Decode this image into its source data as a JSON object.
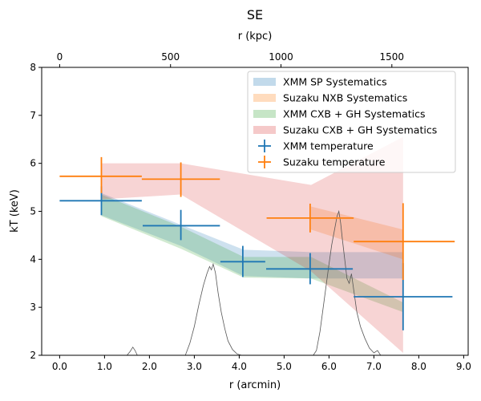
{
  "chart_data": {
    "type": "line",
    "title": "SE",
    "xlabel": "r (arcmin)",
    "ylabel": "kT (keV)",
    "top_xlabel": "r (kpc)",
    "xlim": [
      -0.4,
      9.1
    ],
    "ylim": [
      2,
      8
    ],
    "top_xlim": [
      -0.4,
      9.1
    ],
    "xticks": [
      0.0,
      1.0,
      2.0,
      3.0,
      4.0,
      5.0,
      6.0,
      7.0,
      8.0,
      9.0
    ],
    "xtick_labels": [
      "0.0",
      "1.0",
      "2.0",
      "3.0",
      "4.0",
      "5.0",
      "6.0",
      "7.0",
      "8.0",
      "9.0"
    ],
    "yticks": [
      2,
      3,
      4,
      5,
      6,
      7,
      8
    ],
    "ytick_labels": [
      "2",
      "3",
      "4",
      "5",
      "6",
      "7",
      "8"
    ],
    "top_xticks": [
      0.0,
      2.47,
      4.93,
      7.4
    ],
    "top_xtick_labels": [
      "0",
      "500",
      "1000",
      "1500"
    ],
    "grid": false,
    "legend_position": "top-right",
    "bands": [
      {
        "name": "XMM SP Systematics",
        "color": "#1f77b4",
        "opacity": 0.22,
        "points": [
          {
            "x": 0.93,
            "lo": 4.92,
            "hi": 5.38
          },
          {
            "x": 2.7,
            "lo": 4.28,
            "hi": 4.72
          },
          {
            "x": 4.1,
            "lo": 3.65,
            "hi": 4.2
          },
          {
            "x": 5.6,
            "lo": 3.6,
            "hi": 4.15
          },
          {
            "x": 7.65,
            "lo": 3.6,
            "hi": 4.15
          }
        ]
      },
      {
        "name": "Suzaku NXB Systematics",
        "color": "#ff7f0e",
        "opacity": 0.22,
        "points": [
          {
            "x": 5.6,
            "lo": 4.62,
            "hi": 5.1
          },
          {
            "x": 7.65,
            "lo": 4.0,
            "hi": 4.62
          }
        ]
      },
      {
        "name": "XMM CXB + GH Systematics",
        "color": "#2ca02c",
        "opacity": 0.22,
        "points": [
          {
            "x": 0.93,
            "lo": 4.9,
            "hi": 5.35
          },
          {
            "x": 2.7,
            "lo": 4.22,
            "hi": 4.68
          },
          {
            "x": 4.1,
            "lo": 3.62,
            "hi": 4.05
          },
          {
            "x": 5.6,
            "lo": 3.6,
            "hi": 4.05
          },
          {
            "x": 7.65,
            "lo": 2.9,
            "hi": 3.1
          }
        ]
      },
      {
        "name": "Suzaku CXB + GH Systematics",
        "color": "#d62728",
        "opacity": 0.2,
        "points": [
          {
            "x": 0.93,
            "lo": 5.25,
            "hi": 6.0
          },
          {
            "x": 2.7,
            "lo": 5.35,
            "hi": 6.0
          },
          {
            "x": 5.6,
            "lo": 3.75,
            "hi": 5.55
          },
          {
            "x": 7.65,
            "lo": 2.05,
            "hi": 6.55
          }
        ]
      }
    ],
    "series": [
      {
        "name": "XMM temperature",
        "color": "#1f77b4",
        "points": [
          {
            "x": 0.93,
            "y": 5.22,
            "xerr": [
              0.93,
              0.9
            ],
            "yerr": [
              0.3,
              0.3
            ]
          },
          {
            "x": 2.7,
            "y": 4.7,
            "xerr": [
              0.85,
              0.87
            ],
            "yerr": [
              0.3,
              0.33
            ]
          },
          {
            "x": 4.08,
            "y": 3.95,
            "xerr": [
              0.5,
              0.5
            ],
            "yerr": [
              0.32,
              0.33
            ]
          },
          {
            "x": 5.58,
            "y": 3.8,
            "xerr": [
              0.98,
              0.95
            ],
            "yerr": [
              0.32,
              0.33
            ]
          },
          {
            "x": 7.65,
            "y": 3.22,
            "xerr": [
              1.1,
              1.1
            ],
            "yerr": [
              0.7,
              0.7
            ]
          }
        ]
      },
      {
        "name": "Suzaku temperature",
        "color": "#ff7f0e",
        "points": [
          {
            "x": 0.93,
            "y": 5.73,
            "xerr": [
              0.93,
              0.9
            ],
            "yerr": [
              0.35,
              0.4
            ]
          },
          {
            "x": 2.7,
            "y": 5.67,
            "xerr": [
              0.87,
              0.87
            ],
            "yerr": [
              0.37,
              0.35
            ]
          },
          {
            "x": 5.58,
            "y": 4.86,
            "xerr": [
              0.97,
              0.97
            ],
            "yerr": [
              0.3,
              0.3
            ]
          },
          {
            "x": 7.65,
            "y": 4.37,
            "xerr": [
              1.1,
              1.15
            ],
            "yerr": [
              0.8,
              0.8
            ]
          }
        ]
      }
    ],
    "profile_line": {
      "color": "#555555",
      "points": [
        [
          1.5,
          2.0
        ],
        [
          1.57,
          2.08
        ],
        [
          1.63,
          2.17
        ],
        [
          1.68,
          2.1
        ],
        [
          1.73,
          2.0
        ],
        [
          2.8,
          2.0
        ],
        [
          2.9,
          2.25
        ],
        [
          3.0,
          2.6
        ],
        [
          3.1,
          3.05
        ],
        [
          3.2,
          3.45
        ],
        [
          3.28,
          3.7
        ],
        [
          3.34,
          3.85
        ],
        [
          3.38,
          3.78
        ],
        [
          3.42,
          3.9
        ],
        [
          3.47,
          3.72
        ],
        [
          3.53,
          3.3
        ],
        [
          3.6,
          2.9
        ],
        [
          3.68,
          2.55
        ],
        [
          3.75,
          2.3
        ],
        [
          3.85,
          2.12
        ],
        [
          3.95,
          2.03
        ],
        [
          4.05,
          2.0
        ],
        [
          5.65,
          2.0
        ],
        [
          5.72,
          2.1
        ],
        [
          5.8,
          2.5
        ],
        [
          5.9,
          3.2
        ],
        [
          6.0,
          3.9
        ],
        [
          6.06,
          4.3
        ],
        [
          6.12,
          4.6
        ],
        [
          6.18,
          4.9
        ],
        [
          6.22,
          5.0
        ],
        [
          6.26,
          4.75
        ],
        [
          6.3,
          4.4
        ],
        [
          6.35,
          4.0
        ],
        [
          6.4,
          3.6
        ],
        [
          6.45,
          3.5
        ],
        [
          6.5,
          3.7
        ],
        [
          6.56,
          3.3
        ],
        [
          6.62,
          2.9
        ],
        [
          6.7,
          2.6
        ],
        [
          6.8,
          2.35
        ],
        [
          6.9,
          2.15
        ],
        [
          7.0,
          2.05
        ],
        [
          7.08,
          2.1
        ],
        [
          7.15,
          2.0
        ]
      ]
    }
  }
}
